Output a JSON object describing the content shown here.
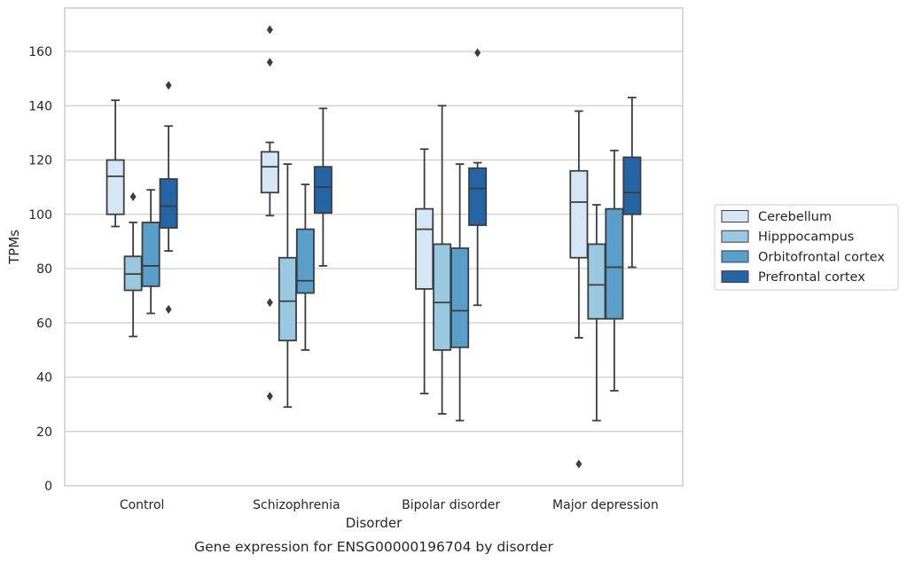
{
  "chart_data": {
    "type": "boxplot",
    "title": "Gene expression for ENSG00000196704 by disorder",
    "xlabel": "Disorder",
    "ylabel": "TPMs",
    "ylim": [
      0,
      176
    ],
    "yticks": [
      0,
      20,
      40,
      60,
      80,
      100,
      120,
      140,
      160
    ],
    "grid": "y",
    "legend_position": "right",
    "categories": [
      "Control",
      "Schizophrenia",
      "Bipolar disorder",
      "Major depression"
    ],
    "series": [
      {
        "name": "Cerebellum",
        "color": "#d6e6f4",
        "boxes": [
          {
            "whislo": 95.5,
            "q1": 100,
            "median": 114,
            "q3": 120,
            "whishi": 142,
            "fliers": []
          },
          {
            "whislo": 99.5,
            "q1": 108,
            "median": 117.5,
            "q3": 123,
            "whishi": 126.5,
            "fliers": [
              67.5,
              33,
              156,
              168
            ]
          },
          {
            "whislo": 34,
            "q1": 72.5,
            "median": 94.5,
            "q3": 102,
            "whishi": 124,
            "fliers": []
          },
          {
            "whislo": 54.5,
            "q1": 84,
            "median": 104.5,
            "q3": 116,
            "whishi": 138,
            "fliers": [
              8
            ]
          }
        ]
      },
      {
        "name": "Hipppocampus",
        "color": "#9ac8e0",
        "boxes": [
          {
            "whislo": 55,
            "q1": 72,
            "median": 78,
            "q3": 84.5,
            "whishi": 97,
            "fliers": [
              106.5
            ]
          },
          {
            "whislo": 29,
            "q1": 53.5,
            "median": 68,
            "q3": 84,
            "whishi": 118.5,
            "fliers": []
          },
          {
            "whislo": 26.5,
            "q1": 50,
            "median": 67.5,
            "q3": 89,
            "whishi": 140,
            "fliers": []
          },
          {
            "whislo": 24,
            "q1": 61.5,
            "median": 74,
            "q3": 89,
            "whishi": 103.5,
            "fliers": []
          }
        ]
      },
      {
        "name": "Orbitofrontal cortex",
        "color": "#5a9fca",
        "boxes": [
          {
            "whislo": 63.5,
            "q1": 73.5,
            "median": 81,
            "q3": 97,
            "whishi": 109,
            "fliers": []
          },
          {
            "whislo": 50,
            "q1": 71,
            "median": 75.5,
            "q3": 94.5,
            "whishi": 111,
            "fliers": []
          },
          {
            "whislo": 24,
            "q1": 51,
            "median": 64.5,
            "q3": 87.5,
            "whishi": 118.5,
            "fliers": []
          },
          {
            "whislo": 35,
            "q1": 61.5,
            "median": 80.5,
            "q3": 102,
            "whishi": 123.5,
            "fliers": []
          }
        ]
      },
      {
        "name": "Prefrontal cortex",
        "color": "#2565a5",
        "boxes": [
          {
            "whislo": 86.5,
            "q1": 95,
            "median": 103,
            "q3": 113,
            "whishi": 132.5,
            "fliers": [
              65,
              147.5
            ]
          },
          {
            "whislo": 81,
            "q1": 100.5,
            "median": 110,
            "q3": 117.5,
            "whishi": 139,
            "fliers": []
          },
          {
            "whislo": 66.5,
            "q1": 96,
            "median": 109.5,
            "q3": 117,
            "whishi": 119,
            "fliers": [
              159.5
            ]
          },
          {
            "whislo": 80.5,
            "q1": 100,
            "median": 108,
            "q3": 121,
            "whishi": 143,
            "fliers": []
          }
        ]
      }
    ]
  }
}
